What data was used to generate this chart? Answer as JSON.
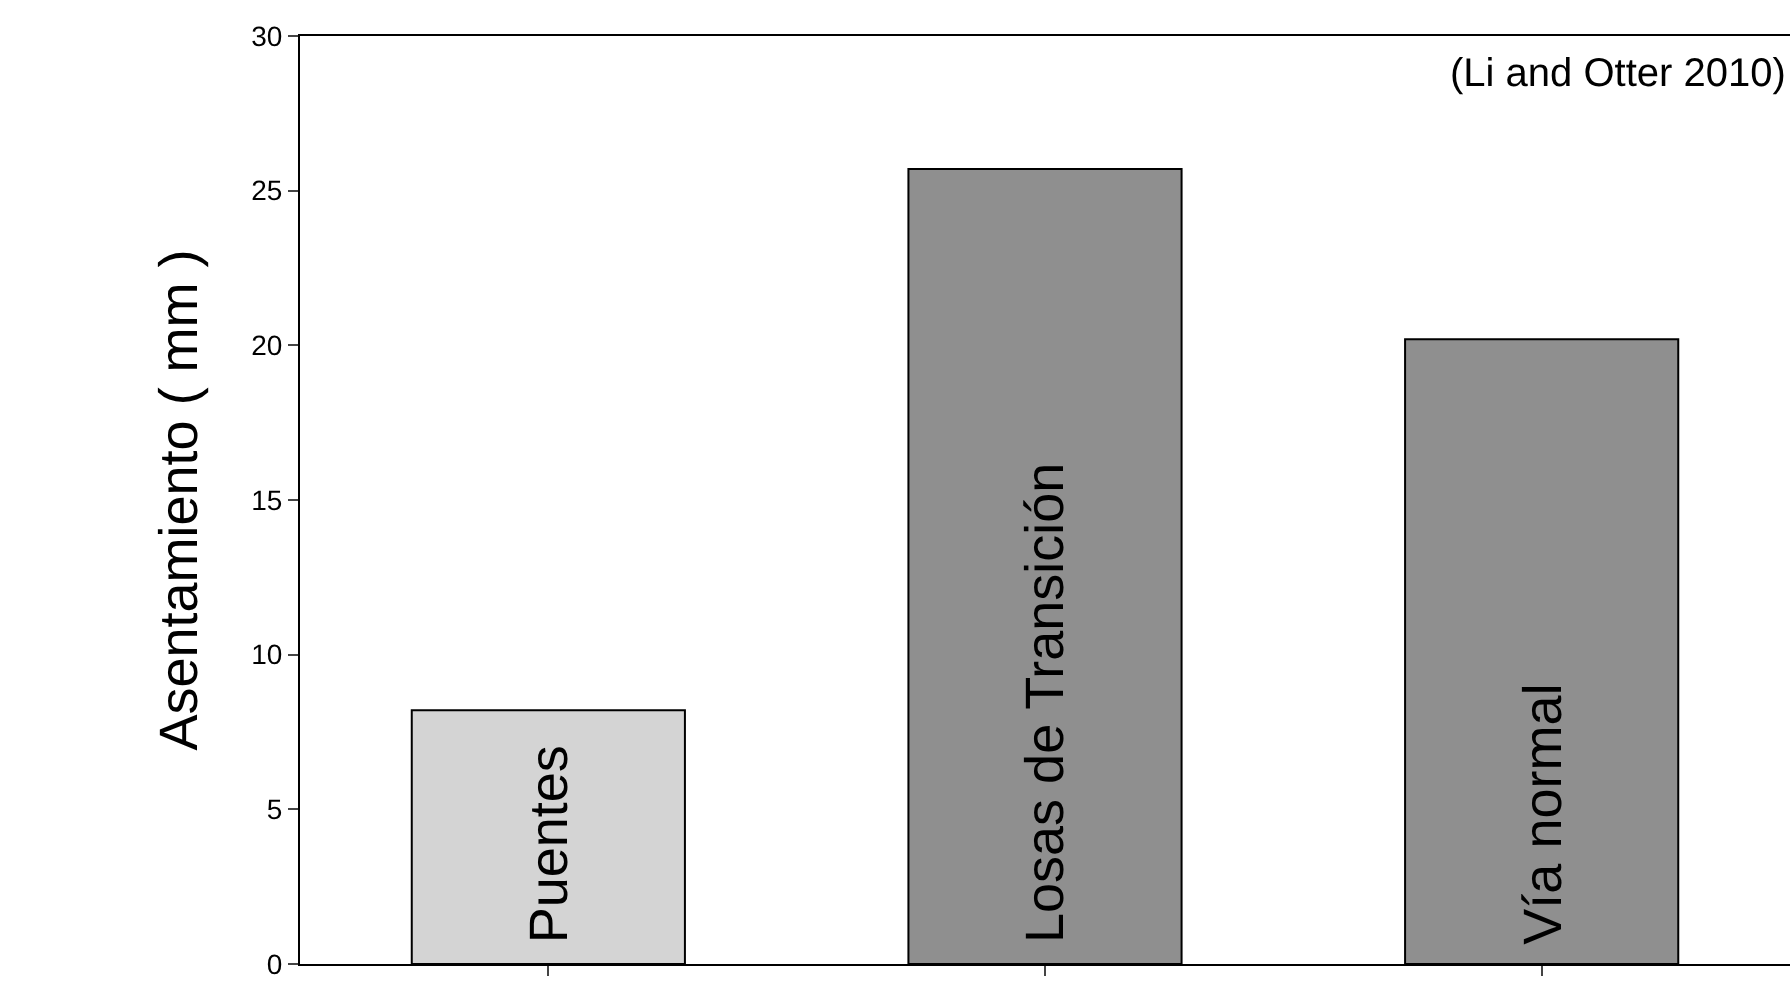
{
  "chart_data": {
    "type": "bar",
    "ylabel": "Asentamiento ( mm )",
    "categories": [
      "Puentes",
      "Losas de Transición",
      "Vía normal"
    ],
    "values": [
      8.2,
      25.7,
      20.2
    ],
    "colors": [
      "#d4d4d4",
      "#8f8f8f",
      "#8f8f8f"
    ],
    "ylim": [
      0,
      30
    ],
    "yticks": [
      0,
      5,
      10,
      15,
      20,
      25,
      30
    ],
    "annotations": [
      "(Li and Otter 2010)"
    ]
  }
}
